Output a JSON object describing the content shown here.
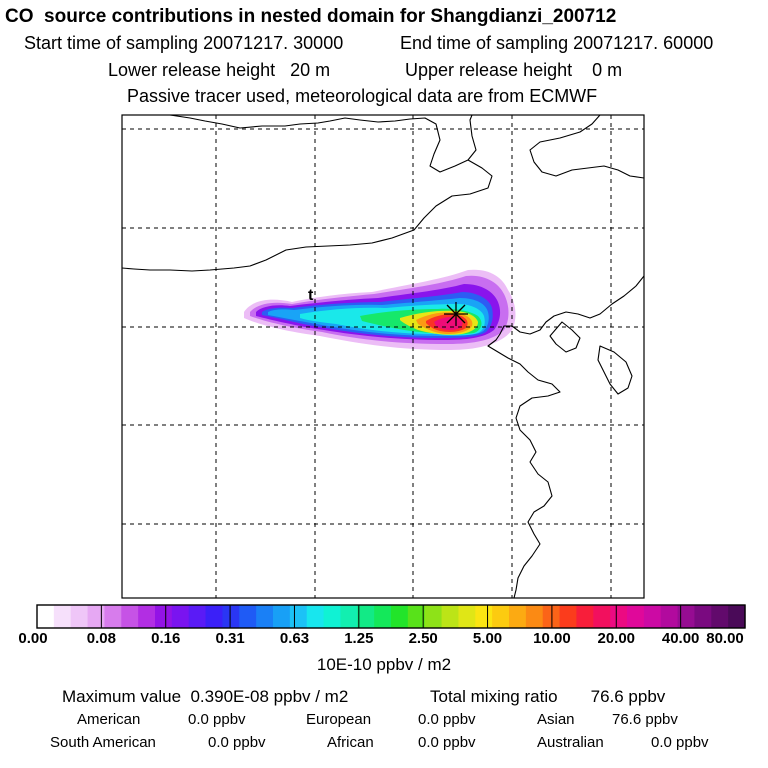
{
  "header": {
    "title": "CO  source contributions in nested domain for Shangdianzi_200712",
    "start_label": "Start time of sampling 20071217. 30000",
    "end_label": "End time of sampling 20071217. 60000",
    "lower_height": "Lower release height   20 m",
    "upper_height": "Upper release height    0 m",
    "tracer_note": "Passive tracer used, meteorological data are from ECMWF"
  },
  "map": {
    "marker_text": "t",
    "receptor_symbol": "asterisk"
  },
  "colorbar": {
    "tick_labels": [
      "0.00",
      "0.08",
      "0.16",
      "0.31",
      "0.63",
      "1.25",
      "2.50",
      "5.00",
      "10.00",
      "20.00",
      "40.00",
      "80.00"
    ],
    "unit": "10E-10 ppbv / m2",
    "colors": [
      "#ffffff",
      "#f6e0fb",
      "#efc6f8",
      "#e6a8f3",
      "#d77cec",
      "#c653e6",
      "#b22ee3",
      "#9313e6",
      "#7a14f0",
      "#5a1bf6",
      "#3b20f8",
      "#2a36f4",
      "#1f5bf5",
      "#1a80f6",
      "#18a0f6",
      "#1cc2f6",
      "#18e6ee",
      "#10f2d4",
      "#12efb0",
      "#12ea86",
      "#14e85a",
      "#22e42a",
      "#58e21a",
      "#8ee218",
      "#bce417",
      "#e0e616",
      "#fbe512",
      "#fccb10",
      "#fcaa12",
      "#fb8a14",
      "#fb6418",
      "#fb3c1c",
      "#f81e3a",
      "#f2105e",
      "#ec0a82",
      "#e0089a",
      "#cc0aa4",
      "#b20a9e",
      "#960c92",
      "#7a0a80",
      "#620a6c",
      "#4a0a58"
    ]
  },
  "stats": {
    "maximum": "Maximum value  0.390E-08 ppbv / m2",
    "total": "Total mixing ratio       76.6 ppbv",
    "contributions": [
      {
        "name": "American",
        "value": "0.0 ppbv"
      },
      {
        "name": "European",
        "value": "0.0 ppbv"
      },
      {
        "name": "Asian",
        "value": "76.6 ppbv"
      },
      {
        "name": "South American",
        "value": "0.0 ppbv"
      },
      {
        "name": "African",
        "value": "0.0 ppbv"
      },
      {
        "name": "Australian",
        "value": "0.0 ppbv"
      }
    ]
  }
}
